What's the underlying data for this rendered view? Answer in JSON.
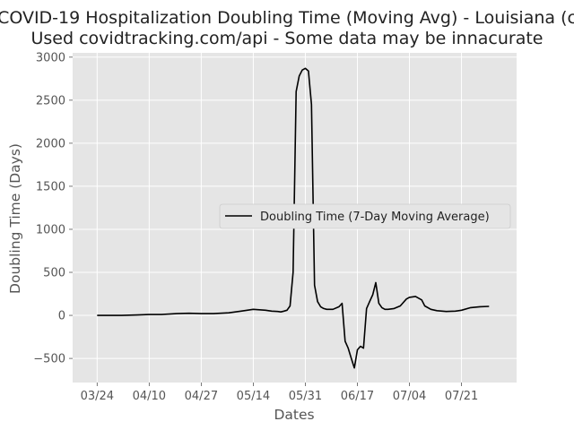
{
  "chart_data": {
    "type": "line",
    "title": "COVID-19 Hospitalization Doubling Time (Moving Avg) - Louisiana (c",
    "subtitle": "Used covidtracking.com/api - Some data may be innacurate",
    "xlabel": "Dates",
    "ylabel": "Doubling Time (Days)",
    "x_tick_labels": [
      "03/24",
      "04/10",
      "04/27",
      "05/14",
      "05/31",
      "06/17",
      "07/04",
      "07/21"
    ],
    "y_ticks": [
      -500,
      0,
      500,
      1000,
      1500,
      2000,
      2500,
      3000
    ],
    "y_tick_labels": [
      "−500",
      "0",
      "500",
      "1000",
      "1500",
      "2000",
      "2500",
      "3000"
    ],
    "ylim": [
      -780,
      3050
    ],
    "xlim": [
      "2020-03-16",
      "2020-08-08"
    ],
    "grid": true,
    "style": "ggplot",
    "legend_position": "center-right",
    "colors": {
      "line": "#000000",
      "plot_bg": "#e5e5e5",
      "grid": "#ffffff"
    },
    "series": [
      {
        "name": "Doubling Time (7-Day Moving Average)",
        "x": [
          "2020-03-24",
          "2020-03-28",
          "2020-04-01",
          "2020-04-06",
          "2020-04-10",
          "2020-04-14",
          "2020-04-19",
          "2020-04-23",
          "2020-04-27",
          "2020-05-01",
          "2020-05-06",
          "2020-05-10",
          "2020-05-14",
          "2020-05-18",
          "2020-05-20",
          "2020-05-22",
          "2020-05-23",
          "2020-05-24",
          "2020-05-25",
          "2020-05-26",
          "2020-05-27",
          "2020-05-28",
          "2020-05-29",
          "2020-05-30",
          "2020-05-31",
          "2020-06-01",
          "2020-06-02",
          "2020-06-03",
          "2020-06-04",
          "2020-06-05",
          "2020-06-06",
          "2020-06-07",
          "2020-06-09",
          "2020-06-11",
          "2020-06-12",
          "2020-06-13",
          "2020-06-14",
          "2020-06-15",
          "2020-06-16",
          "2020-06-17",
          "2020-06-18",
          "2020-06-19",
          "2020-06-20",
          "2020-06-21",
          "2020-06-22",
          "2020-06-23",
          "2020-06-24",
          "2020-06-25",
          "2020-06-26",
          "2020-06-27",
          "2020-06-29",
          "2020-07-01",
          "2020-07-03",
          "2020-07-04",
          "2020-07-06",
          "2020-07-08",
          "2020-07-09",
          "2020-07-11",
          "2020-07-13",
          "2020-07-16",
          "2020-07-19",
          "2020-07-21",
          "2020-07-24",
          "2020-07-27",
          "2020-07-30"
        ],
        "values": [
          0,
          0,
          0,
          5,
          10,
          10,
          20,
          25,
          20,
          20,
          30,
          50,
          70,
          60,
          50,
          45,
          40,
          50,
          60,
          110,
          500,
          2600,
          2780,
          2850,
          2870,
          2840,
          2450,
          350,
          160,
          100,
          80,
          70,
          70,
          100,
          140,
          -300,
          -380,
          -500,
          -610,
          -400,
          -360,
          -380,
          80,
          160,
          240,
          380,
          140,
          90,
          70,
          70,
          80,
          110,
          190,
          210,
          220,
          180,
          110,
          70,
          55,
          45,
          50,
          60,
          90,
          100,
          105
        ]
      }
    ]
  }
}
